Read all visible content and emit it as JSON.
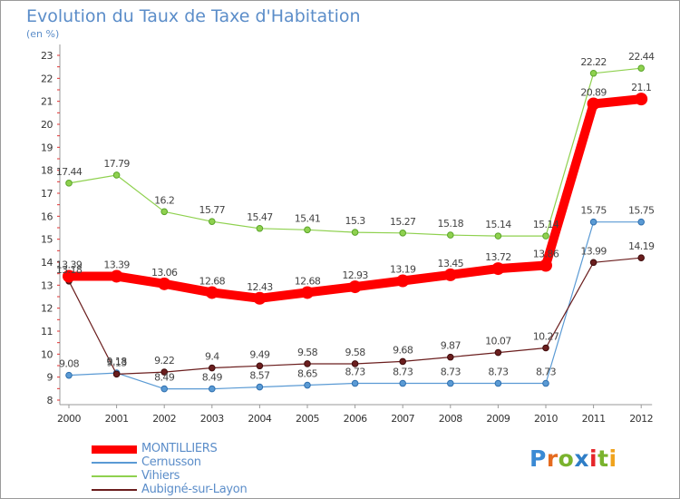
{
  "title": "Evolution du Taux de Taxe d'Habitation",
  "subtitle": "(en %)",
  "logo": {
    "text": "Proxiti",
    "letter_colors": [
      "#3a8ad4",
      "#e56b1f",
      "#7ab32e",
      "#2f7ec7",
      "#e5262a",
      "#7ab32e",
      "#f0a31c"
    ]
  },
  "chart_data": {
    "type": "line",
    "x": [
      "2000",
      "2001",
      "2002",
      "2003",
      "2004",
      "2005",
      "2006",
      "2007",
      "2008",
      "2009",
      "2010",
      "2011",
      "2012"
    ],
    "y_ticks": [
      "8",
      "9",
      "10",
      "11",
      "12",
      "13",
      "14",
      "15",
      "16",
      "17",
      "18",
      "19",
      "20",
      "21",
      "22",
      "23"
    ],
    "ylim": [
      8,
      23
    ],
    "grid": false,
    "legend_position": "bottom-left",
    "series": [
      {
        "name": "MONTILLIERS",
        "color": "#ff0000",
        "values": [
          13.39,
          13.39,
          13.06,
          12.68,
          12.43,
          12.68,
          12.93,
          13.19,
          13.45,
          13.72,
          13.86,
          20.89,
          21.1
        ],
        "labels": [
          "13.39",
          "13.39",
          "13.06",
          "12.68",
          "12.43",
          "12.68",
          "12.93",
          "13.19",
          "13.45",
          "13.72",
          "13.86",
          "20.89",
          "21.1"
        ]
      },
      {
        "name": "Cernusson",
        "color": "#5a9ad4",
        "values": [
          9.08,
          9.18,
          8.49,
          8.49,
          8.57,
          8.65,
          8.73,
          8.73,
          8.73,
          8.73,
          8.73,
          15.75,
          15.75
        ],
        "labels": [
          "9.08",
          "9.18",
          "8.49",
          "8.49",
          "8.57",
          "8.65",
          "8.73",
          "8.73",
          "8.73",
          "8.73",
          "8.73",
          "15.75",
          "15.75"
        ]
      },
      {
        "name": "Vihiers",
        "color": "#8fd14f",
        "values": [
          17.44,
          17.79,
          16.2,
          15.77,
          15.47,
          15.41,
          15.3,
          15.27,
          15.18,
          15.14,
          15.14,
          22.22,
          22.44
        ],
        "labels": [
          "17.44",
          "17.79",
          "16.2",
          "15.77",
          "15.47",
          "15.41",
          "15.3",
          "15.27",
          "15.18",
          "15.14",
          "15.14",
          "22.22",
          "22.44"
        ]
      },
      {
        "name": "Aubigné-sur-Layon",
        "color": "#6b1e1e",
        "values": [
          13.18,
          9.13,
          9.22,
          9.4,
          9.49,
          9.58,
          9.58,
          9.68,
          9.87,
          10.07,
          10.27,
          13.99,
          14.19
        ],
        "labels": [
          "13.18",
          "9.13",
          "9.22",
          "9.4",
          "9.49",
          "9.58",
          "9.58",
          "9.68",
          "9.87",
          "10.07",
          "10.27",
          "13.99",
          "14.19"
        ]
      }
    ]
  }
}
